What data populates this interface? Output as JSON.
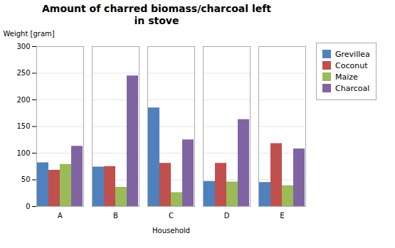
{
  "chart_data": {
    "type": "bar",
    "title": "Amount of charred biomass/charcoal left\nin stove",
    "xlabel": "Household",
    "ylabel": "Weight [gram]",
    "categories": [
      "A",
      "B",
      "C",
      "D",
      "E"
    ],
    "series": [
      {
        "name": "Grevillea",
        "color": "#4F81BD",
        "values": [
          82,
          74,
          185,
          47,
          45
        ]
      },
      {
        "name": "Coconut",
        "color": "#C0504D",
        "values": [
          68,
          75,
          81,
          81,
          118
        ]
      },
      {
        "name": "Maize",
        "color": "#9BBB59",
        "values": [
          79,
          36,
          26,
          46,
          39
        ]
      },
      {
        "name": "Charcoal",
        "color": "#8064A2",
        "values": [
          113,
          245,
          125,
          163,
          108
        ]
      }
    ],
    "ylim": [
      0,
      300
    ],
    "yticks": [
      0,
      50,
      100,
      150,
      200,
      250,
      300
    ],
    "grid": true,
    "legend": "right"
  }
}
